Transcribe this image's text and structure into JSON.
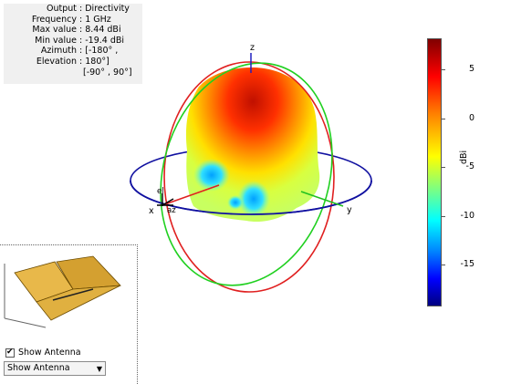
{
  "info": {
    "rows": [
      {
        "key": "Output",
        "value": "Directivity"
      },
      {
        "key": "Frequency",
        "value": "1 GHz"
      },
      {
        "key": "Max value",
        "value": "8.44 dBi"
      },
      {
        "key": "Min value",
        "value": "-19.4 dBi"
      },
      {
        "key": "Azimuth",
        "value": "[-180° ,"
      },
      {
        "key": "Elevation",
        "value": "180°]"
      }
    ],
    "extra_line": "[-90° , 90°]"
  },
  "axes": {
    "x": "x",
    "y": "y",
    "z": "z",
    "el": "el",
    "az": "az"
  },
  "colorbar": {
    "ticks": [
      "5",
      "0",
      "-5",
      "-10",
      "-15"
    ],
    "unit": "dBi"
  },
  "controls": {
    "show_antenna_checkbox_label": "Show Antenna",
    "show_antenna_checked": true,
    "dropdown_value": "Show Antenna"
  },
  "colors": {
    "ring_red": "#e02020",
    "ring_green": "#20d020",
    "ring_blue": "#1010a0"
  }
}
